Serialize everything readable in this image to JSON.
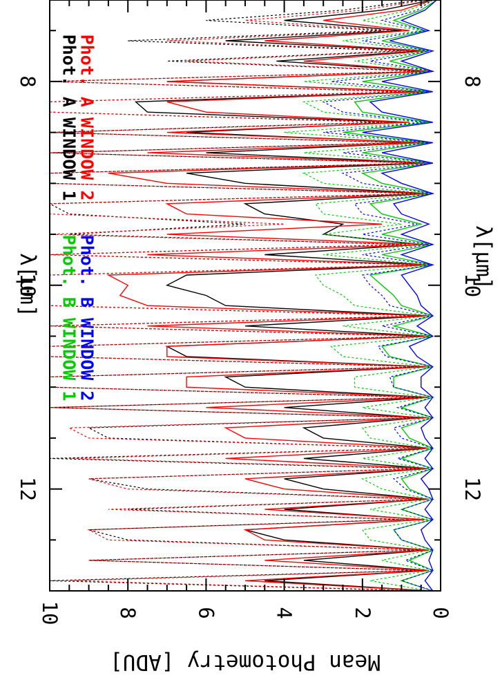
{
  "chart_data": {
    "type": "line",
    "orientation": "rotated-90-clockwise",
    "xlabel": "λ[μm]",
    "ylabel": "Mean Photometry [ADU]",
    "xlim": [
      7.2,
      13.0
    ],
    "ylim": [
      0,
      10
    ],
    "x_ticks": [
      8,
      10,
      12
    ],
    "x_tick_labels": [
      "8",
      "10",
      "12"
    ],
    "y_ticks": [
      0,
      2,
      4,
      6,
      8,
      10
    ],
    "y_tick_labels": [
      "0",
      "2",
      "4",
      "6",
      "8",
      "10"
    ],
    "legend": [
      {
        "text": "Phot. A WINDOW 1",
        "color": "#000000"
      },
      {
        "text": "Phot. A WINDOW 2",
        "color": "#ff0000"
      },
      {
        "text": "Phot. B WINDOW 1",
        "color": "#00cc00"
      },
      {
        "text": "Phot. B WINDOW 2",
        "color": "#0000ff"
      }
    ],
    "series": [
      {
        "name": "Phot. A WINDOW 1",
        "color": "#000000",
        "style": "solid",
        "x": [
          7.2,
          7.3,
          7.4,
          7.5,
          7.6,
          7.7,
          7.8,
          7.9,
          8.0,
          8.1,
          8.2,
          8.3,
          8.4,
          8.5,
          8.6,
          8.7,
          8.8,
          8.9,
          9.0,
          9.1,
          9.2,
          9.3,
          9.4,
          9.5,
          9.6,
          9.7,
          9.8,
          9.9,
          10.0,
          10.1,
          10.2,
          10.3,
          10.4,
          10.5,
          10.6,
          10.7,
          10.8,
          10.9,
          11.0,
          11.1,
          11.2,
          11.3,
          11.4,
          11.5,
          11.6,
          11.7,
          11.8,
          11.9,
          12.0,
          12.1,
          12.2,
          12.3,
          12.4,
          12.5,
          12.6,
          12.7,
          12.8,
          12.9,
          13.0
        ],
        "y": [
          0.2,
          1.5,
          4.0,
          1.0,
          5.5,
          0.5,
          4.2,
          0.3,
          7.0,
          0.5,
          7.8,
          7.5,
          1.0,
          6.5,
          0.5,
          6.0,
          0.3,
          6.5,
          5.0,
          0.3,
          5.0,
          4.5,
          2.5,
          3.0,
          0.5,
          4.5,
          0.3,
          6.5,
          7.0,
          6.0,
          5.5,
          0.3,
          5.0,
          0.3,
          7.0,
          6.5,
          0.3,
          5.5,
          5.0,
          0.3,
          4.0,
          0.5,
          3.5,
          3.0,
          0.3,
          3.5,
          0.3,
          4.0,
          3.0,
          0.3,
          4.0,
          0.5,
          5.0,
          4.0,
          0.3,
          3.5,
          0.3,
          4.5,
          0.3
        ]
      },
      {
        "name": "Phot. A WINDOW 2",
        "color": "#ff0000",
        "style": "solid",
        "x": [
          7.2,
          7.3,
          7.4,
          7.5,
          7.6,
          7.7,
          7.8,
          7.9,
          8.0,
          8.1,
          8.2,
          8.3,
          8.4,
          8.5,
          8.6,
          8.7,
          8.8,
          8.9,
          9.0,
          9.1,
          9.2,
          9.3,
          9.4,
          9.5,
          9.6,
          9.7,
          9.8,
          9.9,
          10.0,
          10.1,
          10.2,
          10.3,
          10.4,
          10.5,
          10.6,
          10.7,
          10.8,
          10.9,
          11.0,
          11.1,
          11.2,
          11.3,
          11.4,
          11.5,
          11.6,
          11.7,
          11.8,
          11.9,
          12.0,
          12.1,
          12.2,
          12.3,
          12.4,
          12.5,
          12.6,
          12.7,
          12.8,
          12.9,
          13.0
        ],
        "y": [
          0.2,
          1.0,
          3.0,
          0.8,
          4.5,
          0.4,
          3.5,
          0.3,
          7.0,
          0.4,
          7.0,
          6.0,
          0.8,
          7.0,
          0.4,
          7.5,
          0.3,
          8.5,
          7.0,
          0.3,
          7.0,
          6.5,
          1.5,
          7.0,
          0.3,
          7.5,
          0.3,
          8.5,
          8.0,
          8.2,
          7.5,
          0.3,
          7.5,
          0.3,
          7.0,
          7.0,
          0.3,
          6.5,
          6.5,
          0.3,
          6.0,
          0.3,
          5.5,
          5.0,
          0.3,
          5.5,
          0.3,
          5.0,
          4.0,
          0.3,
          4.5,
          0.4,
          5.0,
          4.5,
          0.3,
          4.5,
          0.3,
          5.0,
          0.3
        ]
      },
      {
        "name": "Phot. B WINDOW 1",
        "color": "#00cc00",
        "style": "solid",
        "x": [
          7.2,
          7.3,
          7.4,
          7.5,
          7.6,
          7.7,
          7.8,
          7.9,
          8.0,
          8.1,
          8.2,
          8.3,
          8.4,
          8.5,
          8.6,
          8.7,
          8.8,
          8.9,
          9.0,
          9.1,
          9.2,
          9.3,
          9.4,
          9.5,
          9.6,
          9.7,
          9.8,
          9.9,
          10.0,
          10.1,
          10.2,
          10.3,
          10.4,
          10.5,
          10.6,
          10.7,
          10.8,
          10.9,
          11.0,
          11.1,
          11.2,
          11.3,
          11.4,
          11.5,
          11.6,
          11.7,
          11.8,
          11.9,
          12.0,
          12.1,
          12.2,
          12.3,
          12.4,
          12.5,
          12.6,
          12.7,
          12.8,
          12.9,
          13.0
        ],
        "y": [
          0.1,
          0.5,
          1.2,
          0.4,
          1.5,
          0.3,
          1.3,
          0.2,
          2.0,
          0.3,
          2.2,
          2.0,
          0.3,
          2.5,
          0.3,
          2.0,
          0.2,
          2.0,
          1.5,
          0.2,
          1.8,
          1.5,
          0.5,
          1.5,
          0.2,
          1.5,
          0.2,
          1.8,
          1.5,
          1.2,
          1.0,
          0.2,
          1.2,
          0.2,
          1.5,
          1.3,
          0.2,
          1.2,
          1.2,
          0.2,
          1.0,
          0.2,
          1.0,
          0.8,
          0.2,
          1.0,
          0.2,
          1.0,
          0.8,
          0.2,
          1.0,
          0.2,
          1.2,
          1.0,
          0.2,
          0.8,
          0.2,
          1.0,
          0.2
        ]
      },
      {
        "name": "Phot. B WINDOW 2",
        "color": "#0000ff",
        "style": "solid",
        "x": [
          7.2,
          7.3,
          7.4,
          7.5,
          7.6,
          7.7,
          7.8,
          7.9,
          8.0,
          8.1,
          8.2,
          8.3,
          8.4,
          8.5,
          8.6,
          8.7,
          8.8,
          8.9,
          9.0,
          9.1,
          9.2,
          9.3,
          9.4,
          9.5,
          9.6,
          9.7,
          9.8,
          9.9,
          10.0,
          10.1,
          10.2,
          10.3,
          10.4,
          10.5,
          10.6,
          10.7,
          10.8,
          10.9,
          11.0,
          11.1,
          11.2,
          11.3,
          11.4,
          11.5,
          11.6,
          11.7,
          11.8,
          11.9,
          12.0,
          12.1,
          12.2,
          12.3,
          12.4,
          12.5,
          12.6,
          12.7,
          12.8,
          12.9,
          13.0
        ],
        "y": [
          0.1,
          0.4,
          1.0,
          0.3,
          1.3,
          0.2,
          1.0,
          0.2,
          1.5,
          0.2,
          1.8,
          1.5,
          0.2,
          2.0,
          0.2,
          1.5,
          0.2,
          1.5,
          1.0,
          0.2,
          1.2,
          1.0,
          0.3,
          1.0,
          0.2,
          1.0,
          0.2,
          1.0,
          0.8,
          0.6,
          0.5,
          0.2,
          0.6,
          0.2,
          0.8,
          0.6,
          0.2,
          0.5,
          0.5,
          0.2,
          0.4,
          0.2,
          0.5,
          0.4,
          0.2,
          0.4,
          0.2,
          0.5,
          0.3,
          0.2,
          0.4,
          0.2,
          0.5,
          0.4,
          0.2,
          0.3,
          0.2,
          0.4,
          0.2
        ]
      },
      {
        "name": "Phot. A WINDOW 1",
        "color": "#000000",
        "style": "dotted",
        "x": [
          7.2,
          7.3,
          7.4,
          7.5,
          7.6,
          7.7,
          7.8,
          7.9,
          8.0,
          8.1,
          8.2,
          8.3,
          8.4,
          8.5,
          8.6,
          8.7,
          8.8,
          8.9,
          9.0,
          9.1,
          9.2,
          9.3,
          9.4,
          9.5,
          9.6,
          9.7,
          9.8,
          9.9,
          10.0,
          10.1,
          10.2,
          10.3,
          10.4,
          10.5,
          10.6,
          10.7,
          10.8,
          10.9,
          11.0,
          11.1,
          11.2,
          11.3,
          11.4,
          11.5,
          11.6,
          11.7,
          11.8,
          11.9,
          12.0,
          12.1,
          12.2,
          12.3,
          12.4,
          12.5,
          12.6,
          12.7,
          12.8,
          12.9,
          13.0
        ],
        "y": [
          0.5,
          2.5,
          6.0,
          1.5,
          8.0,
          1.0,
          7.0,
          0.5,
          10.0,
          1.0,
          10.0,
          10.0,
          1.5,
          10.0,
          1.0,
          10.0,
          0.5,
          10.0,
          10.0,
          0.5,
          10.0,
          9.5,
          5.0,
          9.5,
          1.0,
          10.0,
          0.5,
          10.0,
          10.0,
          10.0,
          10.0,
          0.5,
          10.0,
          0.5,
          10.0,
          10.0,
          0.5,
          10.0,
          10.0,
          0.5,
          10.0,
          0.5,
          9.0,
          8.5,
          0.5,
          10.0,
          0.5,
          9.0,
          7.5,
          0.5,
          8.0,
          1.0,
          9.0,
          8.0,
          0.5,
          9.0,
          0.5,
          10.0,
          0.5
        ]
      },
      {
        "name": "Phot. A WINDOW 2",
        "color": "#ff0000",
        "style": "dotted",
        "x": [
          7.2,
          7.3,
          7.4,
          7.5,
          7.6,
          7.7,
          7.8,
          7.9,
          8.0,
          8.1,
          8.2,
          8.3,
          8.4,
          8.5,
          8.6,
          8.7,
          8.8,
          8.9,
          9.0,
          9.1,
          9.2,
          9.3,
          9.4,
          9.5,
          9.6,
          9.7,
          9.8,
          9.9,
          10.0,
          10.1,
          10.2,
          10.3,
          10.4,
          10.5,
          10.6,
          10.7,
          10.8,
          10.9,
          11.0,
          11.1,
          11.2,
          11.3,
          11.4,
          11.5,
          11.6,
          11.7,
          11.8,
          11.9,
          12.0,
          12.1,
          12.2,
          12.3,
          12.4,
          12.5,
          12.6,
          12.7,
          12.8,
          12.9,
          13.0
        ],
        "y": [
          0.4,
          2.0,
          5.0,
          1.2,
          7.0,
          0.8,
          6.5,
          0.4,
          10.0,
          0.8,
          10.0,
          10.0,
          1.2,
          10.0,
          0.8,
          10.0,
          0.4,
          10.0,
          10.0,
          0.4,
          10.0,
          10.0,
          4.0,
          10.0,
          0.8,
          10.0,
          0.4,
          10.0,
          10.0,
          10.0,
          10.0,
          0.4,
          10.0,
          0.4,
          10.0,
          10.0,
          0.4,
          10.0,
          10.0,
          0.4,
          10.0,
          0.4,
          9.5,
          9.0,
          0.4,
          9.5,
          0.4,
          9.0,
          8.0,
          0.4,
          8.5,
          0.8,
          9.0,
          8.5,
          0.4,
          9.0,
          0.4,
          9.5,
          0.4
        ]
      },
      {
        "name": "Phot. B WINDOW 1",
        "color": "#00cc00",
        "style": "dotted",
        "x": [
          7.2,
          7.3,
          7.4,
          7.5,
          7.6,
          7.7,
          7.8,
          7.9,
          8.0,
          8.1,
          8.2,
          8.3,
          8.4,
          8.5,
          8.6,
          8.7,
          8.8,
          8.9,
          9.0,
          9.1,
          9.2,
          9.3,
          9.4,
          9.5,
          9.6,
          9.7,
          9.8,
          9.9,
          10.0,
          10.1,
          10.2,
          10.3,
          10.4,
          10.5,
          10.6,
          10.7,
          10.8,
          10.9,
          11.0,
          11.1,
          11.2,
          11.3,
          11.4,
          11.5,
          11.6,
          11.7,
          11.8,
          11.9,
          12.0,
          12.1,
          12.2,
          12.3,
          12.4,
          12.5,
          12.6,
          12.7,
          12.8,
          12.9,
          13.0
        ],
        "y": [
          0.2,
          0.8,
          2.0,
          0.5,
          2.5,
          0.4,
          2.2,
          0.3,
          3.5,
          0.4,
          3.5,
          3.0,
          0.5,
          4.0,
          0.4,
          3.5,
          0.3,
          3.5,
          3.0,
          0.3,
          3.2,
          3.0,
          1.0,
          3.0,
          0.4,
          3.0,
          0.3,
          3.2,
          3.0,
          2.5,
          2.2,
          0.3,
          2.5,
          0.3,
          2.8,
          2.5,
          0.3,
          2.2,
          2.2,
          0.3,
          2.0,
          0.3,
          2.0,
          1.8,
          0.3,
          2.0,
          0.3,
          2.0,
          1.5,
          0.3,
          1.8,
          0.3,
          2.0,
          1.8,
          0.3,
          1.5,
          0.3,
          1.8,
          0.3
        ]
      },
      {
        "name": "Phot. B WINDOW 2",
        "color": "#0000ff",
        "style": "dotted",
        "x": [
          7.2,
          7.3,
          7.4,
          7.5,
          7.6,
          7.7,
          7.8,
          7.9,
          8.0,
          8.1,
          8.2,
          8.3,
          8.4,
          8.5,
          8.6,
          8.7,
          8.8,
          8.9,
          9.0,
          9.1,
          9.2,
          9.3,
          9.4,
          9.5,
          9.6,
          9.7,
          9.8,
          9.9,
          10.0,
          10.1,
          10.2,
          10.3,
          10.4,
          10.5,
          10.6,
          10.7,
          10.8,
          10.9,
          11.0,
          11.1,
          11.2,
          11.3,
          11.4,
          11.5,
          11.6,
          11.7,
          11.8,
          11.9,
          12.0,
          12.1,
          12.2,
          12.3,
          12.4,
          12.5,
          12.6,
          12.7,
          12.8,
          12.9,
          13.0
        ],
        "y": [
          0.2,
          0.6,
          1.5,
          0.4,
          2.0,
          0.3,
          1.8,
          0.2,
          2.8,
          0.3,
          3.0,
          2.5,
          0.4,
          3.0,
          0.3,
          2.5,
          0.2,
          2.5,
          2.0,
          0.2,
          2.2,
          2.0,
          0.6,
          2.0,
          0.3,
          2.0,
          0.2,
          2.0,
          1.8,
          1.5,
          1.3,
          0.2,
          1.5,
          0.2,
          1.6,
          1.4,
          0.2,
          1.3,
          1.2,
          0.2,
          1.1,
          0.2,
          1.2,
          1.0,
          0.2,
          1.1,
          0.2,
          1.2,
          0.9,
          0.2,
          1.0,
          0.2,
          1.2,
          1.0,
          0.2,
          0.9,
          0.2,
          1.0,
          0.2
        ]
      }
    ]
  }
}
